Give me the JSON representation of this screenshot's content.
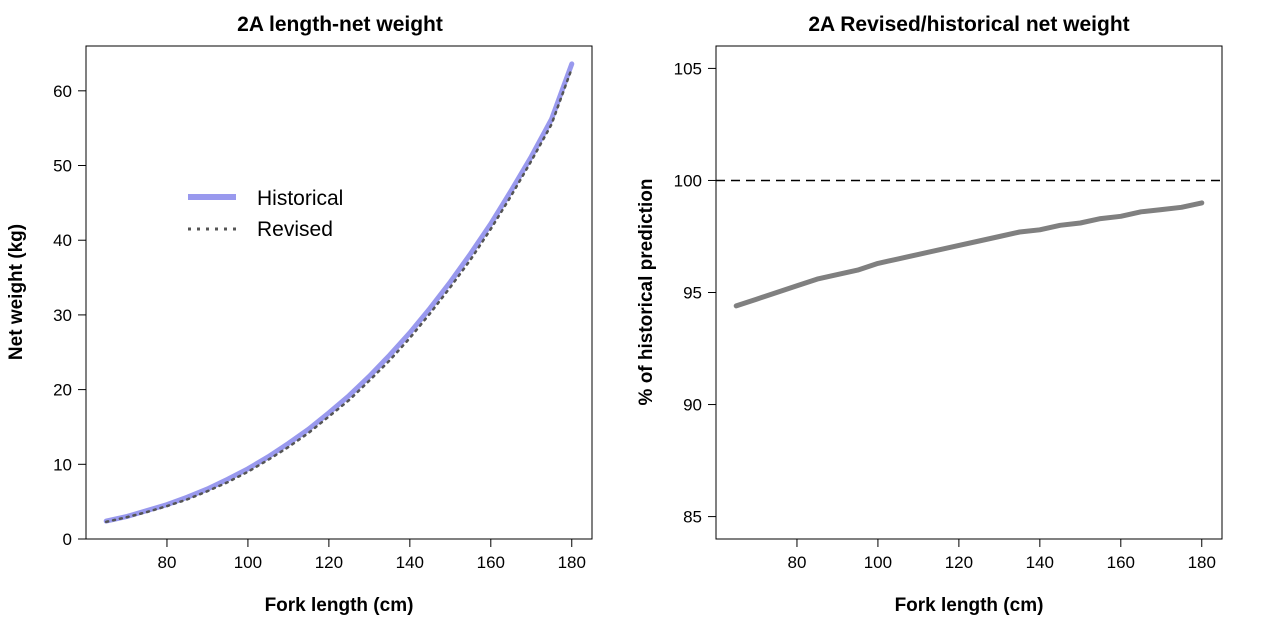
{
  "chart_data": [
    {
      "type": "line",
      "title": "2A length-net weight",
      "xlabel": "Fork length (cm)",
      "ylabel": "Net weight (kg)",
      "xlim": [
        60,
        185
      ],
      "ylim": [
        0,
        66
      ],
      "xticks": [
        80,
        100,
        120,
        140,
        160,
        180
      ],
      "yticks": [
        0,
        10,
        20,
        30,
        40,
        50,
        60
      ],
      "grid": false,
      "legend_position": "upper-left",
      "x": [
        65,
        70,
        75,
        80,
        85,
        90,
        95,
        100,
        105,
        110,
        115,
        120,
        125,
        130,
        135,
        140,
        145,
        150,
        155,
        160,
        165,
        170,
        175,
        180
      ],
      "series": [
        {
          "name": "Historical",
          "color": "#9999ee",
          "style": "solid-thick",
          "values": [
            2.4,
            3.0,
            3.8,
            4.6,
            5.6,
            6.7,
            8.0,
            9.4,
            11.0,
            12.8,
            14.7,
            16.9,
            19.2,
            21.8,
            24.6,
            27.6,
            30.9,
            34.4,
            38.2,
            42.2,
            46.6,
            51.2,
            56.2,
            63.6
          ]
        },
        {
          "name": "Revised",
          "color": "#555555",
          "style": "dotted",
          "values": [
            2.3,
            2.9,
            3.6,
            4.4,
            5.3,
            6.4,
            7.6,
            9.0,
            10.6,
            12.3,
            14.2,
            16.4,
            18.6,
            21.2,
            23.9,
            26.9,
            30.2,
            33.7,
            37.4,
            41.5,
            45.9,
            50.6,
            55.5,
            63.0
          ]
        }
      ]
    },
    {
      "type": "line",
      "title": "2A Revised/historical net weight",
      "xlabel": "Fork length (cm)",
      "ylabel": "% of historical prediction",
      "xlim": [
        60,
        185
      ],
      "ylim": [
        84,
        106
      ],
      "xticks": [
        80,
        100,
        120,
        140,
        160,
        180
      ],
      "yticks": [
        85,
        90,
        95,
        100,
        105
      ],
      "grid": false,
      "reference_line": {
        "y": 100,
        "style": "dashed",
        "color": "#000000"
      },
      "x": [
        65,
        70,
        75,
        80,
        85,
        90,
        95,
        100,
        105,
        110,
        115,
        120,
        125,
        130,
        135,
        140,
        145,
        150,
        155,
        160,
        165,
        170,
        175,
        180
      ],
      "series": [
        {
          "color": "#808080",
          "style": "solid-thick",
          "values": [
            94.4,
            94.7,
            95.0,
            95.3,
            95.6,
            95.8,
            96.0,
            96.3,
            96.5,
            96.7,
            96.9,
            97.1,
            97.3,
            97.5,
            97.7,
            97.8,
            98.0,
            98.1,
            98.3,
            98.4,
            98.6,
            98.7,
            98.8,
            99.0
          ]
        }
      ]
    }
  ]
}
